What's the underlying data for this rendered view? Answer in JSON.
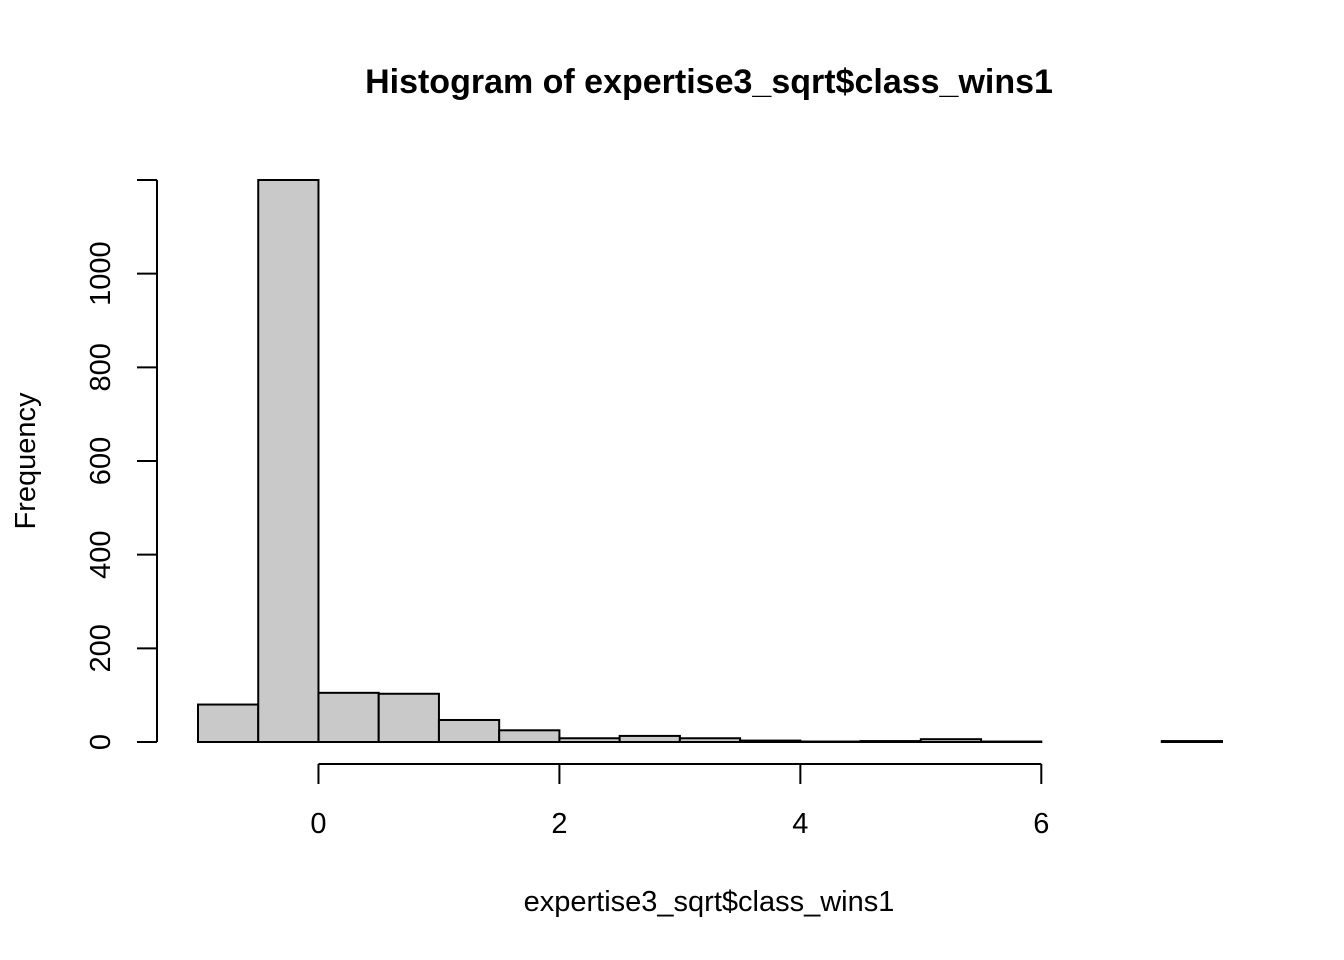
{
  "chart_data": {
    "type": "bar",
    "subtype": "histogram",
    "title": "Histogram of expertise3_sqrt$class_wins1",
    "xlabel": "expertise3_sqrt$class_wins1",
    "ylabel": "Frequency",
    "bin_edges": [
      -1.0,
      -0.5,
      0.0,
      0.5,
      1.0,
      1.5,
      2.0,
      2.5,
      3.0,
      3.5,
      4.0,
      4.5,
      5.0,
      5.5,
      6.0,
      6.5,
      7.0,
      7.5
    ],
    "values": [
      80,
      1200,
      105,
      103,
      47,
      25,
      8,
      13,
      8,
      3,
      1,
      2,
      6,
      1,
      0,
      0,
      2
    ],
    "xlim": [
      -1.0,
      7.5
    ],
    "ylim": [
      0,
      1200
    ],
    "x_ticks": [
      0,
      2,
      4,
      6
    ],
    "x_tick_labels": [
      "0",
      "2",
      "4",
      "6"
    ],
    "y_ticks": [
      0,
      200,
      400,
      600,
      800,
      1000
    ],
    "y_tick_labels": [
      "0",
      "200",
      "400",
      "600",
      "800",
      "1000"
    ],
    "bar_color": "#c9c9c9",
    "edge_color": "#000000",
    "grid": false,
    "legend": "none"
  }
}
